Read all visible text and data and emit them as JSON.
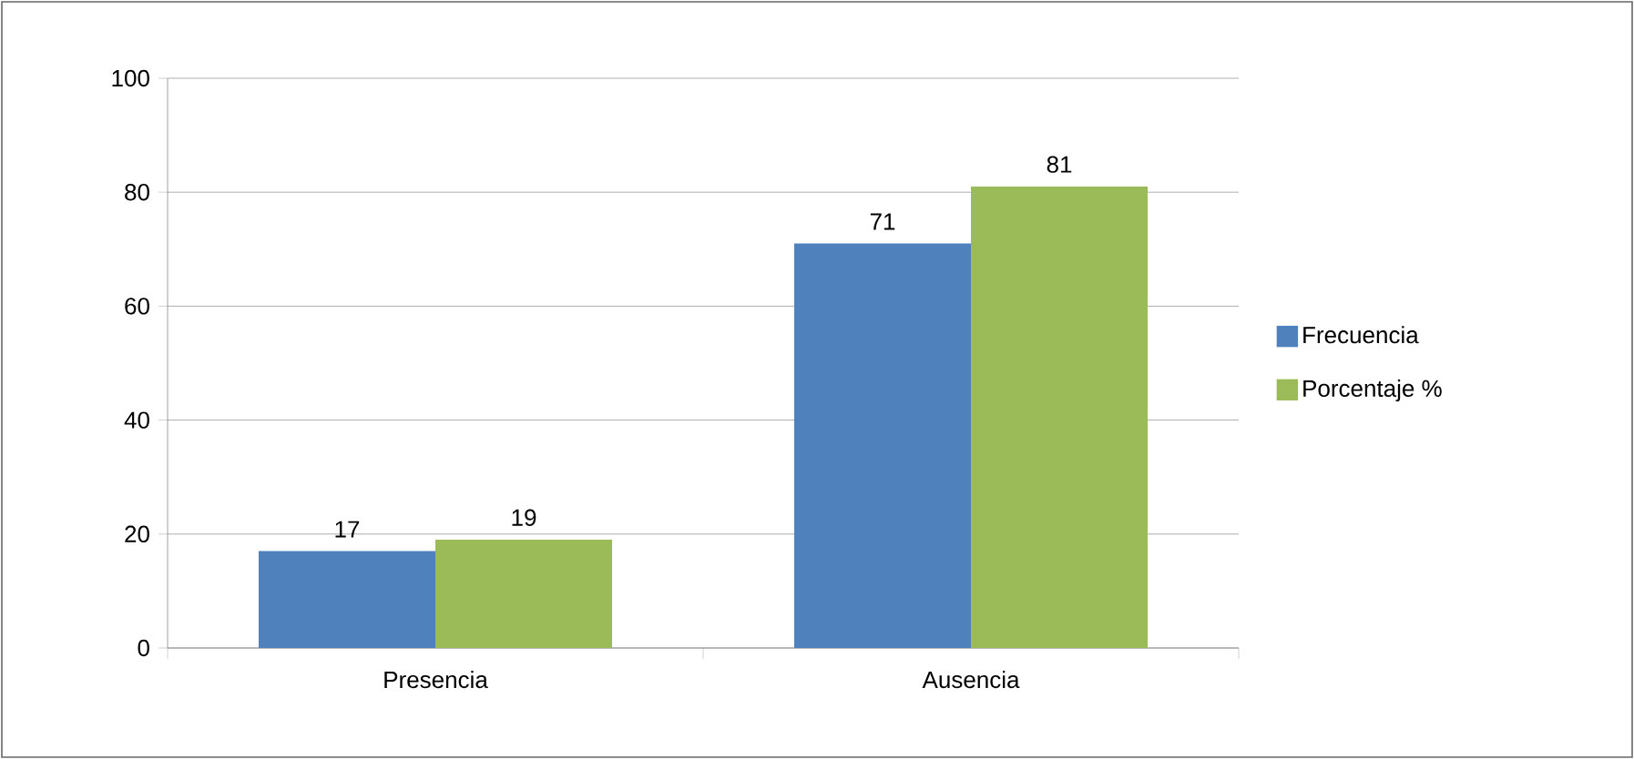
{
  "chart_data": {
    "type": "bar",
    "categories": [
      "Presencia",
      "Ausencia"
    ],
    "series": [
      {
        "name": "Frecuencia",
        "color": "#4f81bd",
        "values": [
          17,
          71
        ]
      },
      {
        "name": "Porcentaje %",
        "color": "#9bbb59",
        "values": [
          19,
          81
        ]
      }
    ],
    "ylim": [
      0,
      100
    ],
    "yticks": [
      0,
      20,
      40,
      60,
      80,
      100
    ],
    "grid": "y",
    "legend": "right",
    "data_labels": true
  }
}
